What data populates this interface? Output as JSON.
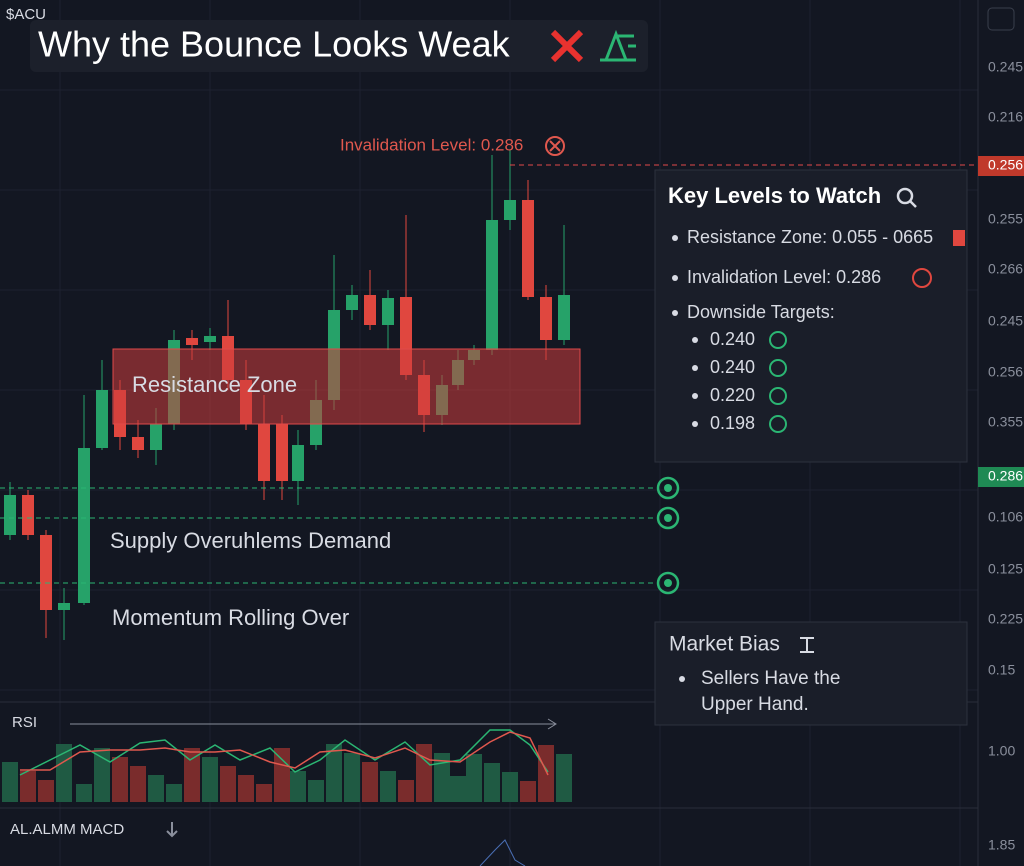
{
  "header": {
    "ticker": "$ACU",
    "title": "Why the Bounce Looks Weak"
  },
  "annotations": {
    "invalidation": "Invalidation Level: 0.286",
    "resistance_zone": "Resistance Zone",
    "supply": "Supply Overuhlems Demand",
    "momentum": "Momentum Rolling Over"
  },
  "key_levels": {
    "title": "Key Levels to Watch",
    "items": [
      "Resistance Zone: 0.055 - 0665",
      "Invalidation Level:  0.286",
      "Downside Targets:"
    ],
    "targets": [
      "0.240",
      "0.240",
      "0.220",
      "0.198"
    ]
  },
  "market_bias": {
    "title": "Market Bias",
    "items": [
      "Sellers Have the Upper Hand."
    ]
  },
  "indicators": {
    "rsi": "RSI",
    "macd": "AL.ALMM MACD"
  },
  "price_axis": [
    "0.245",
    "0.216",
    "0.256",
    "0.255",
    "0.266",
    "0.245",
    "0.256",
    "0.355",
    "0.286",
    "0.106",
    "0.125",
    "0.225",
    "0.15",
    "1.00",
    "1.85"
  ]
}
